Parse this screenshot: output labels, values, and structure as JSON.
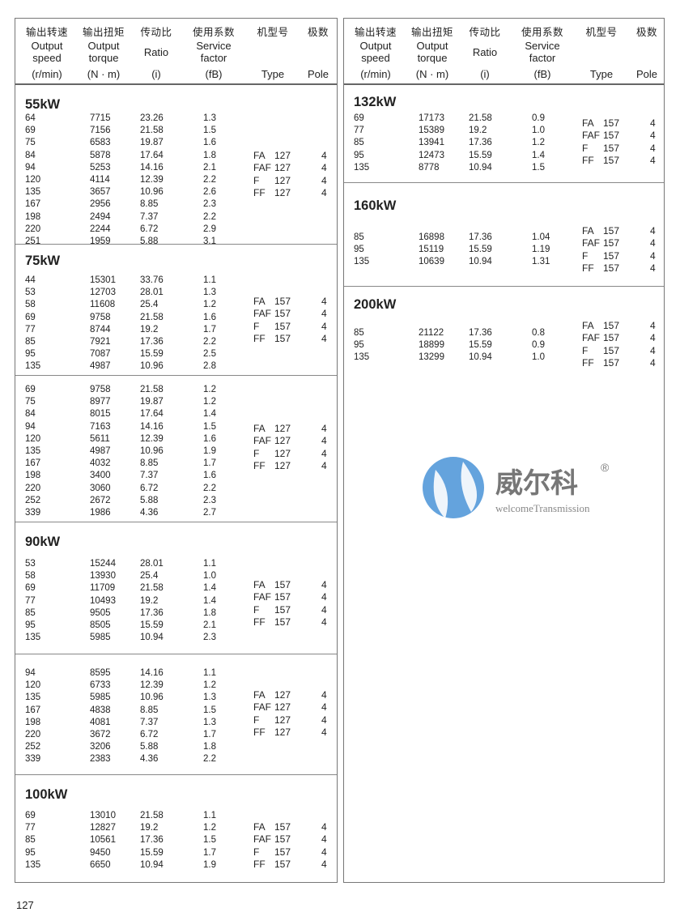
{
  "header": {
    "columns": [
      {
        "zh": "输出转速",
        "en1": "Output",
        "en2": "speed",
        "unit": "(r/min)"
      },
      {
        "zh": "输出扭矩",
        "en1": "Output",
        "en2": "torque",
        "unit": "(N · m)"
      },
      {
        "zh": "传动比",
        "en1": "Ratio",
        "en2": "",
        "unit": "(i)"
      },
      {
        "zh": "使用系数",
        "en1": "Service",
        "en2": "factor",
        "unit": "(fB)"
      },
      {
        "zh": "机型号",
        "en1": "",
        "en2": "",
        "unit": "Type"
      },
      {
        "zh": "极数",
        "en1": "",
        "en2": "",
        "unit": "Pole"
      }
    ]
  },
  "left_sections": [
    {
      "kw": "55kW",
      "rows": [
        [
          "64",
          "7715",
          "23.26",
          "1.3"
        ],
        [
          "69",
          "7156",
          "21.58",
          "1.5"
        ],
        [
          "75",
          "6583",
          "19.87",
          "1.6"
        ],
        [
          "84",
          "5878",
          "17.64",
          "1.8"
        ],
        [
          "94",
          "5253",
          "14.16",
          "2.1"
        ],
        [
          "120",
          "4114",
          "12.39",
          "2.2"
        ],
        [
          "135",
          "3657",
          "10.96",
          "2.6"
        ],
        [
          "167",
          "2956",
          "8.85",
          "2.3"
        ],
        [
          "198",
          "2494",
          "7.37",
          "2.2"
        ],
        [
          "220",
          "2244",
          "6.72",
          "2.9"
        ],
        [
          "251",
          "1959",
          "5.88",
          "3.1"
        ]
      ],
      "types": [
        [
          "FA",
          "127",
          "4"
        ],
        [
          "FAF",
          "127",
          "4"
        ],
        [
          "F",
          "127",
          "4"
        ],
        [
          "FF",
          "127",
          "4"
        ]
      ]
    },
    {
      "kw": "75kW",
      "rows": [
        [
          "44",
          "15301",
          "33.76",
          "1.1"
        ],
        [
          "53",
          "12703",
          "28.01",
          "1.3"
        ],
        [
          "58",
          "11608",
          "25.4",
          "1.2"
        ],
        [
          "69",
          "9758",
          "21.58",
          "1.6"
        ],
        [
          "77",
          "8744",
          "19.2",
          "1.7"
        ],
        [
          "85",
          "7921",
          "17.36",
          "2.2"
        ],
        [
          "95",
          "7087",
          "15.59",
          "2.5"
        ],
        [
          "135",
          "4987",
          "10.96",
          "2.8"
        ]
      ],
      "types": [
        [
          "FA",
          "157",
          "4"
        ],
        [
          "FAF",
          "157",
          "4"
        ],
        [
          "F",
          "157",
          "4"
        ],
        [
          "FF",
          "157",
          "4"
        ]
      ]
    },
    {
      "kw": "",
      "rows": [
        [
          "69",
          "9758",
          "21.58",
          "1.2"
        ],
        [
          "75",
          "8977",
          "19.87",
          "1.2"
        ],
        [
          "84",
          "8015",
          "17.64",
          "1.4"
        ],
        [
          "94",
          "7163",
          "14.16",
          "1.5"
        ],
        [
          "120",
          "5611",
          "12.39",
          "1.6"
        ],
        [
          "135",
          "4987",
          "10.96",
          "1.9"
        ],
        [
          "167",
          "4032",
          "8.85",
          "1.7"
        ],
        [
          "198",
          "3400",
          "7.37",
          "1.6"
        ],
        [
          "220",
          "3060",
          "6.72",
          "2.2"
        ],
        [
          "252",
          "2672",
          "5.88",
          "2.3"
        ],
        [
          "339",
          "1986",
          "4.36",
          "2.7"
        ]
      ],
      "types": [
        [
          "FA",
          "127",
          "4"
        ],
        [
          "FAF",
          "127",
          "4"
        ],
        [
          "F",
          "127",
          "4"
        ],
        [
          "FF",
          "127",
          "4"
        ]
      ]
    },
    {
      "kw": "90kW",
      "rows": [
        [
          "53",
          "15244",
          "28.01",
          "1.1"
        ],
        [
          "58",
          "13930",
          "25.4",
          "1.0"
        ],
        [
          "69",
          "11709",
          "21.58",
          "1.4"
        ],
        [
          "77",
          "10493",
          "19.2",
          "1.4"
        ],
        [
          "85",
          "9505",
          "17.36",
          "1.8"
        ],
        [
          "95",
          "8505",
          "15.59",
          "2.1"
        ],
        [
          "135",
          "5985",
          "10.94",
          "2.3"
        ]
      ],
      "types": [
        [
          "FA",
          "157",
          "4"
        ],
        [
          "FAF",
          "157",
          "4"
        ],
        [
          "F",
          "157",
          "4"
        ],
        [
          "FF",
          "157",
          "4"
        ]
      ]
    },
    {
      "kw": "",
      "rows": [
        [
          "94",
          "8595",
          "14.16",
          "1.1"
        ],
        [
          "120",
          "6733",
          "12.39",
          "1.2"
        ],
        [
          "135",
          "5985",
          "10.96",
          "1.3"
        ],
        [
          "167",
          "4838",
          "8.85",
          "1.5"
        ],
        [
          "198",
          "4081",
          "7.37",
          "1.3"
        ],
        [
          "220",
          "3672",
          "6.72",
          "1.7"
        ],
        [
          "252",
          "3206",
          "5.88",
          "1.8"
        ],
        [
          "339",
          "2383",
          "4.36",
          "2.2"
        ]
      ],
      "types": [
        [
          "FA",
          "127",
          "4"
        ],
        [
          "FAF",
          "127",
          "4"
        ],
        [
          "F",
          "127",
          "4"
        ],
        [
          "FF",
          "127",
          "4"
        ]
      ]
    },
    {
      "kw": "100kW",
      "rows": [
        [
          "69",
          "13010",
          "21.58",
          "1.1"
        ],
        [
          "77",
          "12827",
          "19.2",
          "1.2"
        ],
        [
          "85",
          "10561",
          "17.36",
          "1.5"
        ],
        [
          "95",
          "9450",
          "15.59",
          "1.7"
        ],
        [
          "135",
          "6650",
          "10.94",
          "1.9"
        ]
      ],
      "types": [
        [
          "FA",
          "157",
          "4"
        ],
        [
          "FAF",
          "157",
          "4"
        ],
        [
          "F",
          "157",
          "4"
        ],
        [
          "FF",
          "157",
          "4"
        ]
      ]
    }
  ],
  "right_sections": [
    {
      "kw": "132kW",
      "rows": [
        [
          "69",
          "17173",
          "21.58",
          "0.9"
        ],
        [
          "77",
          "15389",
          "19.2",
          "1.0"
        ],
        [
          "85",
          "13941",
          "17.36",
          "1.2"
        ],
        [
          "95",
          "12473",
          "15.59",
          "1.4"
        ],
        [
          "135",
          "8778",
          "10.94",
          "1.5"
        ]
      ],
      "types": [
        [
          "FA",
          "157",
          "4"
        ],
        [
          "FAF",
          "157",
          "4"
        ],
        [
          "F",
          "157",
          "4"
        ],
        [
          "FF",
          "157",
          "4"
        ]
      ]
    },
    {
      "kw": "160kW",
      "rows": [
        [
          "85",
          "16898",
          "17.36",
          "1.04"
        ],
        [
          "95",
          "15119",
          "15.59",
          "1.19"
        ],
        [
          "135",
          "10639",
          "10.94",
          "1.31"
        ]
      ],
      "types": [
        [
          "FA",
          "157",
          "4"
        ],
        [
          "FAF",
          "157",
          "4"
        ],
        [
          "F",
          "157",
          "4"
        ],
        [
          "FF",
          "157",
          "4"
        ]
      ]
    },
    {
      "kw": "200kW",
      "rows": [
        [
          "85",
          "21122",
          "17.36",
          "0.8"
        ],
        [
          "95",
          "18899",
          "15.59",
          "0.9"
        ],
        [
          "135",
          "13299",
          "10.94",
          "1.0"
        ]
      ],
      "types": [
        [
          "FA",
          "157",
          "4"
        ],
        [
          "FAF",
          "157",
          "4"
        ],
        [
          "F",
          "157",
          "4"
        ],
        [
          "FF",
          "157",
          "4"
        ]
      ]
    }
  ],
  "watermark": {
    "name_zh": "威尔科",
    "name_en": "welcomeTransmission",
    "mark": "®",
    "color": "#3a8ad6"
  },
  "page_number": "127"
}
